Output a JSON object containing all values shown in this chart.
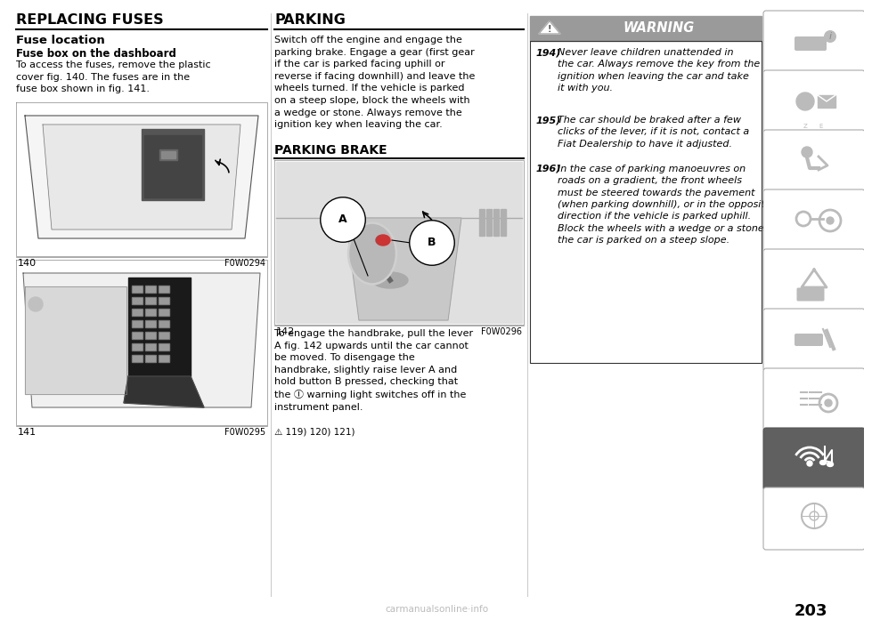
{
  "page_bg": "#ffffff",
  "page_number": "203",
  "watermark": "carmanualsonline·info",
  "title1": "REPLACING FUSES",
  "subtitle1a": "Fuse location",
  "subtitle1b": "Fuse box on the dashboard",
  "body1": "To access the fuses, remove the plastic\ncover fig. 140. The fuses are in the\nfuse box shown in fig. 141.",
  "fig140_label": "140",
  "fig140_code": "F0W0294",
  "fig141_label": "141",
  "fig141_code": "F0W0295",
  "title2": "PARKING",
  "body2": "Switch off the engine and engage the\nparking brake. Engage a gear (first gear\nif the car is parked facing uphill or\nreverse if facing downhill) and leave the\nwheels turned. If the vehicle is parked\non a steep slope, block the wheels with\na wedge or stone. Always remove the\nignition key when leaving the car.",
  "subtitle2": "PARKING BRAKE",
  "fig142_label": "142",
  "fig142_code": "F0W0296",
  "body2b": "To engage the handbrake, pull the lever\nA fig. 142 upwards until the car cannot\nbe moved. To disengage the\nhandbrake, slightly raise lever A and\nhold button B pressed, checking that\nthe Ⓘ warning light switches off in the\ninstrument panel.",
  "body2c": "⚠ 119) 120) 121)",
  "warning_title": "WARNING",
  "warning_bg": "#a0a0a0",
  "sidebar_active_index": 7,
  "sidebar_bg_active": "#606060",
  "sidebar_bg_inactive": "#ffffff",
  "line_color": "#000000",
  "text_color": "#000000"
}
